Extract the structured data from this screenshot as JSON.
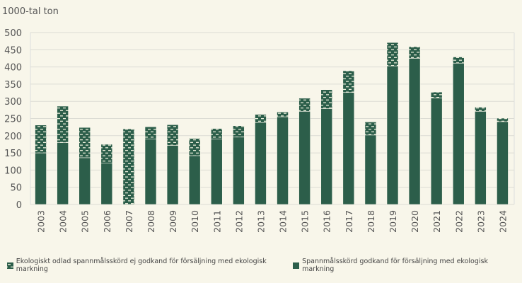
{
  "chart_data": {
    "type": "bar",
    "stacked": true,
    "ylabel": "1000-tal ton",
    "ylim": [
      0,
      500
    ],
    "yticks": [
      0,
      50,
      100,
      150,
      200,
      250,
      300,
      350,
      400,
      450,
      500
    ],
    "grid": true,
    "legend_placement": "bottom",
    "categories": [
      "2003",
      "2004",
      "2005",
      "2006",
      "2007",
      "2008",
      "2009",
      "2010",
      "2011",
      "2012",
      "2013",
      "2014",
      "2015",
      "2016",
      "2017",
      "2018",
      "2019",
      "2020",
      "2021",
      "2022",
      "2023",
      "2024"
    ],
    "series": [
      {
        "name": "Spannmålsskörd godkand för försäljning med ekologisk markning",
        "pattern": "solid",
        "color": "#2c5e4a",
        "values": [
          150,
          180,
          136,
          120,
          0,
          190,
          172,
          142,
          190,
          196,
          238,
          255,
          271,
          279,
          326,
          202,
          403,
          425,
          310,
          411,
          271,
          241
        ]
      },
      {
        "name": "Ekologiskt odlad spannmålsskörd ej godkand för försäljning med ekologisk markning",
        "pattern": "dashed",
        "color": "#2c5e4a",
        "values": [
          81,
          106,
          88,
          55,
          220,
          36,
          60,
          50,
          31,
          33,
          24,
          14,
          38,
          55,
          63,
          38,
          68,
          34,
          17,
          18,
          12,
          10
        ]
      }
    ]
  }
}
